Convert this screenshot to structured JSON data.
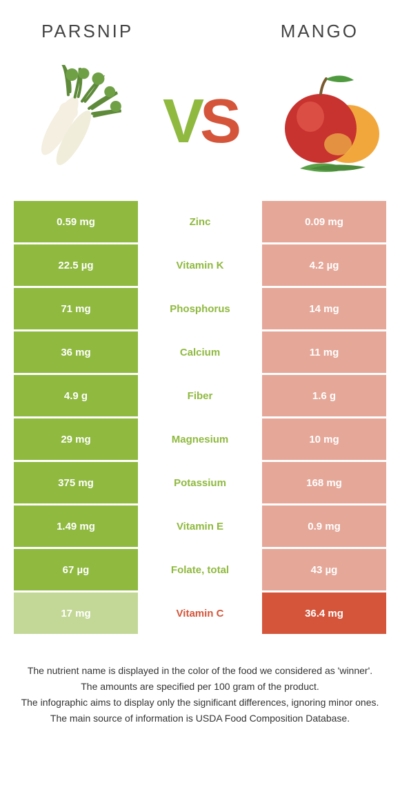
{
  "colors": {
    "left": "#8fb93f",
    "right": "#d4553a",
    "leftDim": "#c3d896",
    "rightDim": "#e5a798",
    "bg": "#ffffff"
  },
  "header": {
    "left": "Parsnip",
    "right": "Mango"
  },
  "vs": {
    "v": "V",
    "s": "S"
  },
  "rows": [
    {
      "nutrient": "Zinc",
      "left": "0.59 mg",
      "right": "0.09 mg",
      "winner": "left"
    },
    {
      "nutrient": "Vitamin K",
      "left": "22.5 µg",
      "right": "4.2 µg",
      "winner": "left"
    },
    {
      "nutrient": "Phosphorus",
      "left": "71 mg",
      "right": "14 mg",
      "winner": "left"
    },
    {
      "nutrient": "Calcium",
      "left": "36 mg",
      "right": "11 mg",
      "winner": "left"
    },
    {
      "nutrient": "Fiber",
      "left": "4.9 g",
      "right": "1.6 g",
      "winner": "left"
    },
    {
      "nutrient": "Magnesium",
      "left": "29 mg",
      "right": "10 mg",
      "winner": "left"
    },
    {
      "nutrient": "Potassium",
      "left": "375 mg",
      "right": "168 mg",
      "winner": "left"
    },
    {
      "nutrient": "Vitamin E",
      "left": "1.49 mg",
      "right": "0.9 mg",
      "winner": "left"
    },
    {
      "nutrient": "Folate, total",
      "left": "67 µg",
      "right": "43 µg",
      "winner": "left"
    },
    {
      "nutrient": "Vitamin C",
      "left": "17 mg",
      "right": "36.4 mg",
      "winner": "right"
    }
  ],
  "footer": {
    "l1": "The nutrient name is displayed in the color of the food we considered as 'winner'.",
    "l2": "The amounts are specified per 100 gram of the product.",
    "l3": "The infographic aims to display only the significant differences, ignoring minor ones.",
    "l4": "The main source of information is USDA Food Composition Database."
  }
}
